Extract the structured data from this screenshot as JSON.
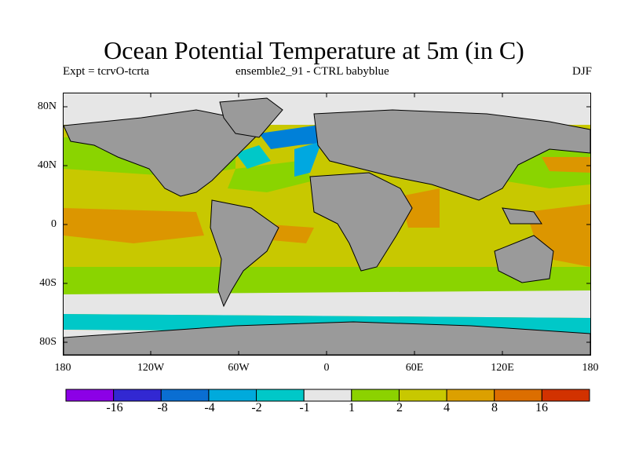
{
  "header": {
    "title": "Ocean Potential Temperature at 5m (in C)",
    "expt": "Expt = tcrvO-tcrta",
    "ensemble": "ensemble2_91 - CTRL babyblue",
    "season": "DJF"
  },
  "map": {
    "lat_labels": [
      "80N",
      "40N",
      "0",
      "40S",
      "80S"
    ],
    "lon_labels": [
      "180",
      "120W",
      "60W",
      "0",
      "60E",
      "120E",
      "180"
    ],
    "colors": {
      "land": "#9a9a9a",
      "coast": "#000000",
      "neutral": "#e6e6e6",
      "green": "#8ad400",
      "yellow": "#c8c800",
      "orange": "#dc9600",
      "cyan": "#00c8c8",
      "lightblue": "#00a8e0",
      "blue": "#0080d8"
    }
  },
  "colorbar": {
    "labels": [
      "-16",
      "-8",
      "-4",
      "-2",
      "-1",
      "1",
      "2",
      "4",
      "8",
      "16"
    ],
    "colors": [
      "#8c00e6",
      "#3228d2",
      "#0a6ed2",
      "#00aadc",
      "#00c8c8",
      "#e6e6e6",
      "#8cd200",
      "#c8c800",
      "#dca000",
      "#dc6e00",
      "#d23200"
    ]
  }
}
